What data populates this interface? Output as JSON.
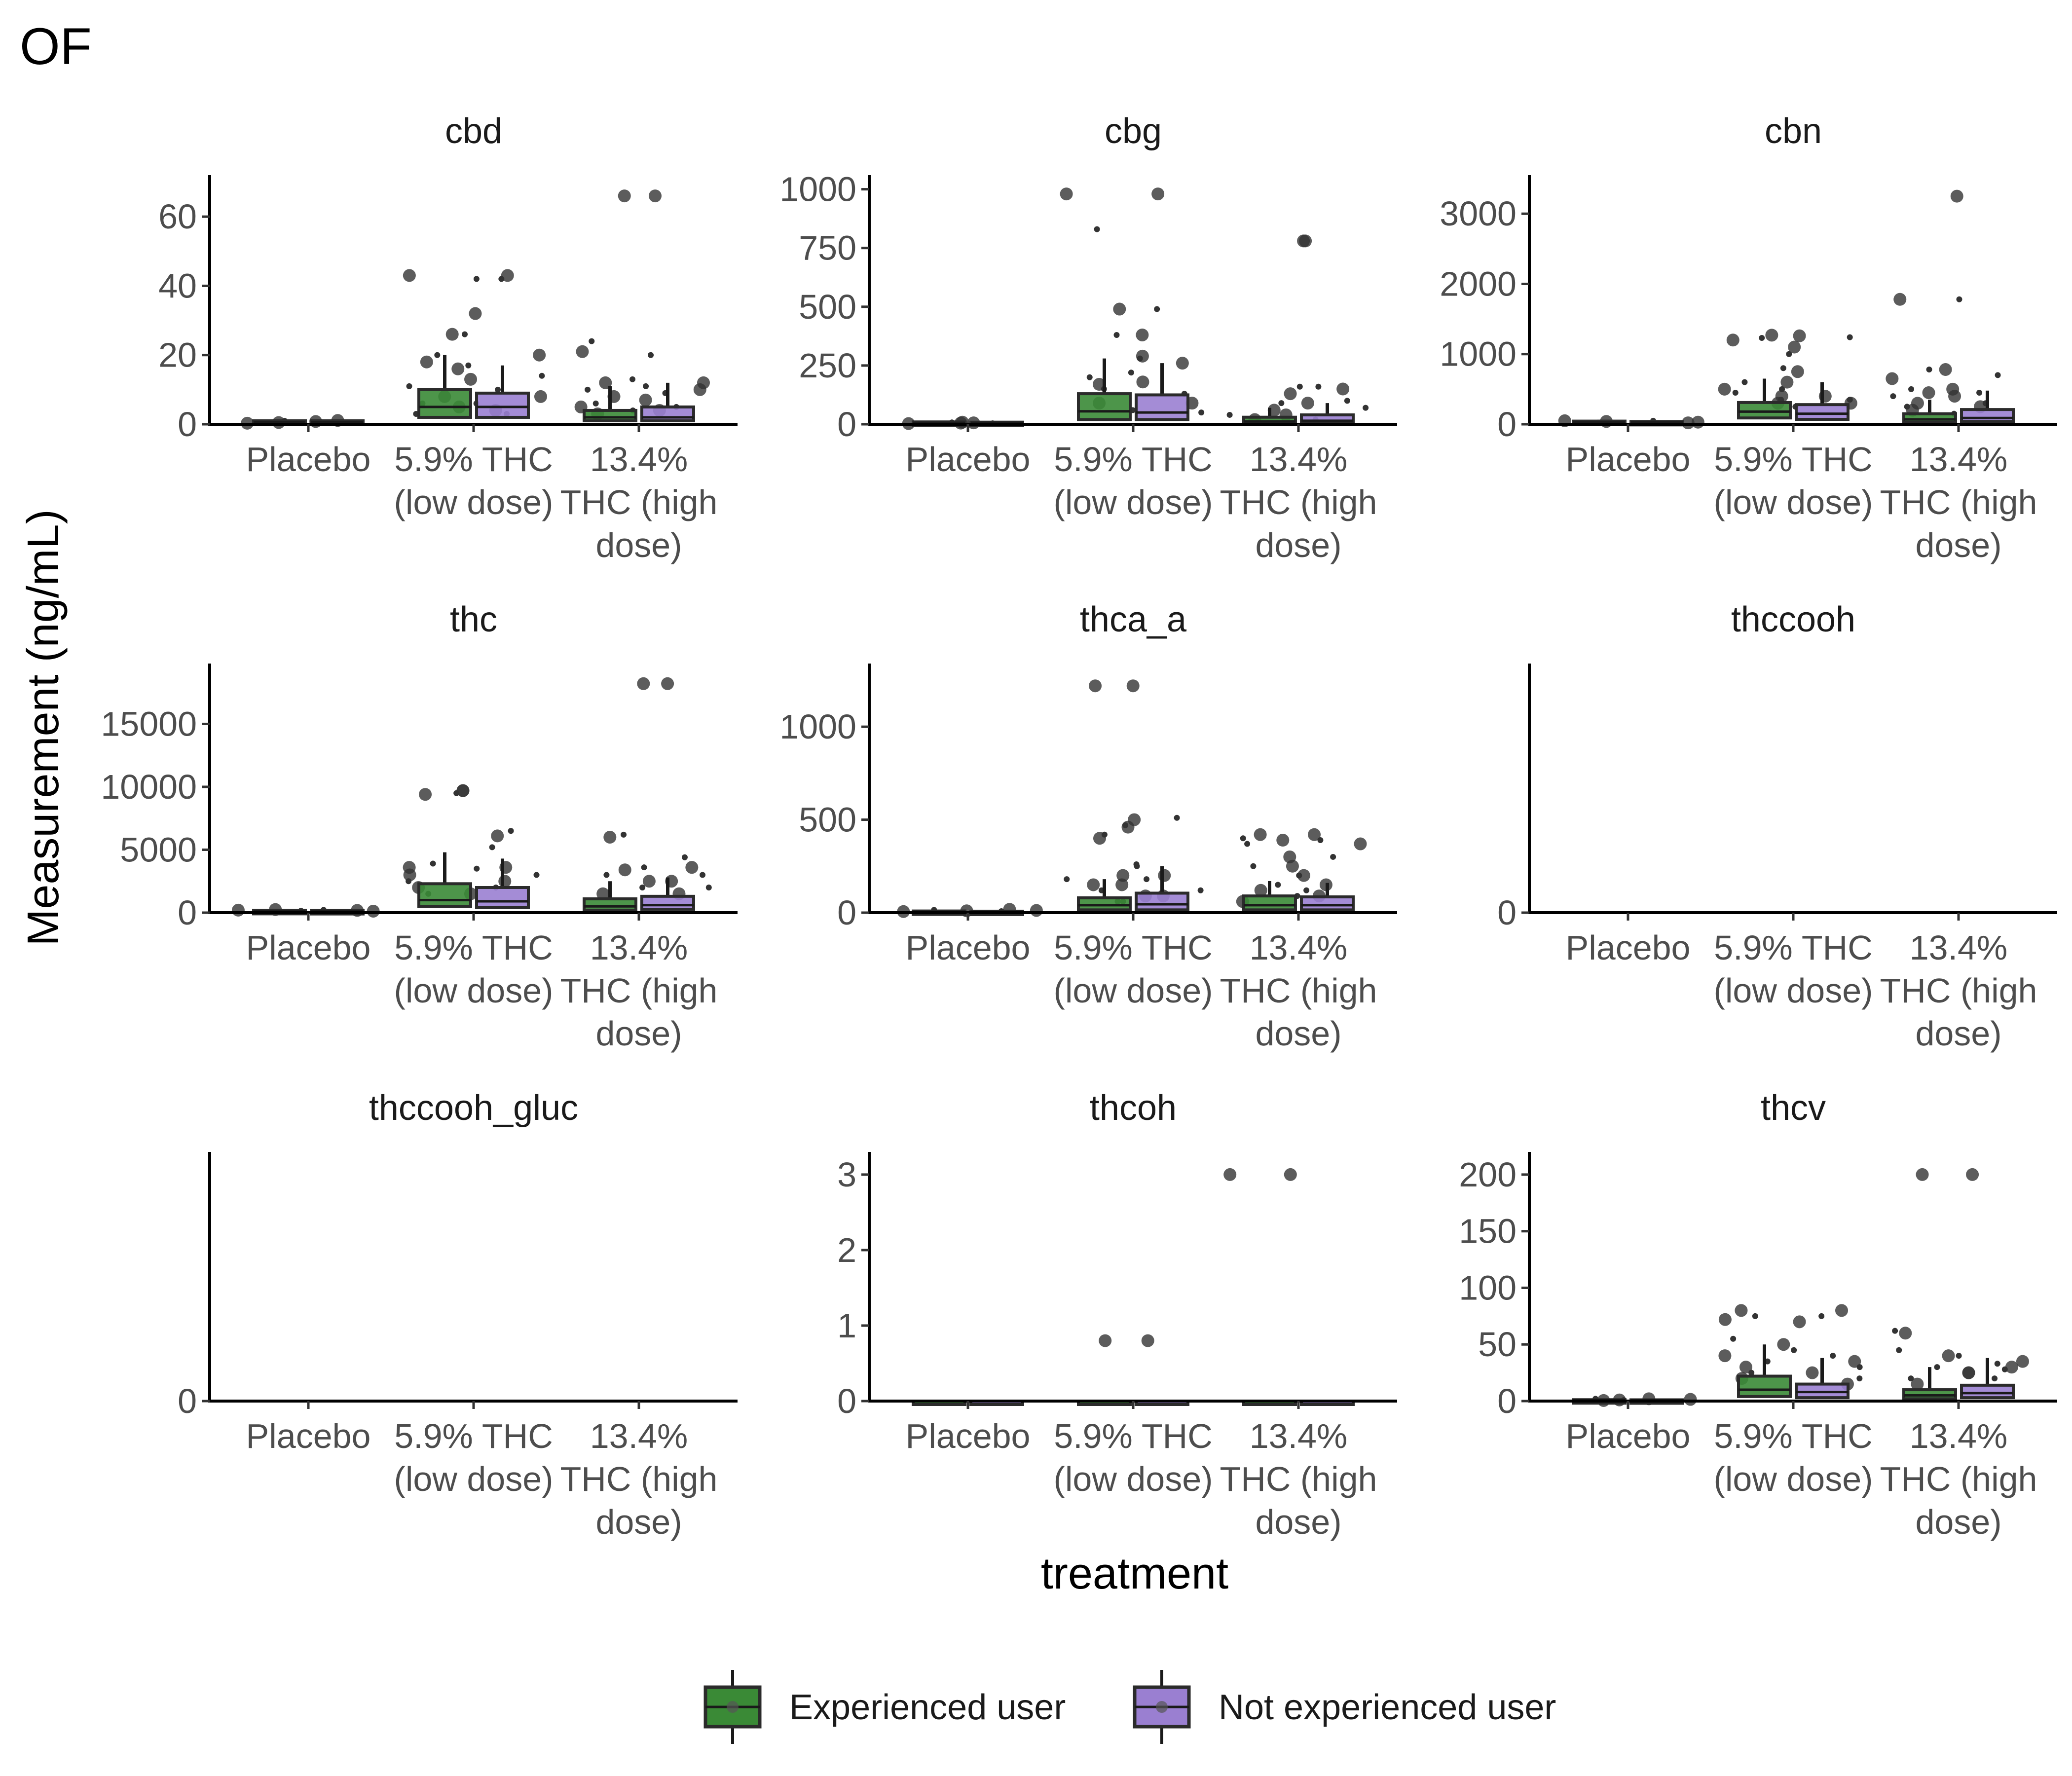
{
  "title": "OF",
  "chart_data": {
    "type": "boxplot",
    "title": "OF",
    "xlabel": "treatment",
    "ylabel": "Measurement (ng/mL)",
    "categories": [
      "Placebo",
      "5.9% THC (low dose)",
      "13.4% THC (high dose)"
    ],
    "category_label_lines": [
      [
        "Placebo"
      ],
      [
        "5.9% THC",
        "(low dose)"
      ],
      [
        "13.4%",
        "THC (high",
        "dose)"
      ]
    ],
    "legend": {
      "position": "bottom",
      "entries": [
        {
          "name": "Experienced user",
          "color": "#3a8a36"
        },
        {
          "name": "Not experienced user",
          "color": "#9a7fd1"
        }
      ]
    },
    "grid": false,
    "panels": [
      {
        "name": "cbd",
        "ylim": [
          0,
          72
        ],
        "yticks": [
          0,
          20,
          40,
          60
        ],
        "groups": [
          [
            [
              0,
              0.3,
              0.6,
              1,
              1.2
            ],
            [
              0,
              0.3,
              0.6,
              1,
              1.1
            ]
          ],
          [
            [
              0.5,
              2,
              5,
              10,
              20
            ],
            [
              0.5,
              2,
              5,
              9,
              17
            ]
          ],
          [
            [
              0.3,
              1,
              2,
              4,
              11
            ],
            [
              0.3,
              1,
              2,
              5,
              12
            ]
          ]
        ],
        "points": [
          [
            [
              0.5,
              1,
              0.3
            ],
            [
              0.8,
              0.6,
              1.1
            ]
          ],
          [
            [
              43,
              42,
              26,
              20,
              18,
              17,
              16,
              11,
              8,
              6,
              5,
              3
            ],
            [
              43,
              42,
              32,
              26,
              20,
              14,
              13,
              10,
              8,
              6,
              4,
              3
            ]
          ],
          [
            [
              66,
              24,
              21,
              20,
              12,
              10,
              8,
              6,
              5,
              4,
              3
            ],
            [
              66,
              13,
              12,
              11,
              10,
              9,
              7,
              5,
              4
            ]
          ]
        ]
      },
      {
        "name": "cbg",
        "ylim": [
          0,
          1060
        ],
        "yticks": [
          0,
          250,
          500,
          750,
          1000
        ],
        "groups": [
          [
            [
              0,
              3,
              6,
              10,
              14
            ],
            [
              0,
              3,
              6,
              9,
              13
            ]
          ],
          [
            [
              2,
              20,
              55,
              130,
              280
            ],
            [
              2,
              20,
              50,
              125,
              260
            ]
          ],
          [
            [
              1,
              5,
              12,
              30,
              70
            ],
            [
              1,
              5,
              15,
              40,
              90
            ]
          ]
        ],
        "points": [
          [
            [
              5,
              8,
              3
            ],
            [
              6,
              4,
              9
            ]
          ],
          [
            [
              980,
              830,
              490,
              380,
              290,
              200,
              170,
              150,
              90,
              60
            ],
            [
              980,
              490,
              380,
              280,
              260,
              220,
              180,
              130,
              90,
              50
            ]
          ],
          [
            [
              780,
              160,
              130,
              90,
              60,
              40,
              20,
              10
            ],
            [
              780,
              160,
              150,
              100,
              90,
              70,
              40,
              20
            ]
          ]
        ]
      },
      {
        "name": "cbn",
        "ylim": [
          0,
          3550
        ],
        "yticks": [
          0,
          1000,
          2000,
          3000
        ],
        "groups": [
          [
            [
              0,
              10,
              25,
              45,
              65
            ],
            [
              0,
              10,
              25,
              40,
              60
            ]
          ],
          [
            [
              20,
              90,
              180,
              310,
              650
            ],
            [
              15,
              70,
              150,
              280,
              600
            ]
          ],
          [
            [
              5,
              30,
              70,
              150,
              350
            ],
            [
              5,
              40,
              90,
              210,
              480
            ]
          ]
        ],
        "points": [
          [
            [
              40,
              20,
              50
            ],
            [
              30,
              50,
              20
            ]
          ],
          [
            [
              1270,
              1230,
              1200,
              1000,
              750,
              600,
              500,
              450,
              400,
              350,
              300,
              250
            ],
            [
              1260,
              1240,
              1100,
              800,
              600,
              500,
              400,
              350,
              300
            ]
          ],
          [
            [
              1780,
              780,
              650,
              500,
              450,
              400,
              300,
              250,
              200,
              150
            ],
            [
              3250,
              1780,
              780,
              700,
              500,
              450,
              400,
              300,
              250
            ]
          ]
        ]
      },
      {
        "name": "thc",
        "ylim": [
          0,
          19800
        ],
        "yticks": [
          0,
          5000,
          10000,
          15000
        ],
        "groups": [
          [
            [
              0,
              50,
              100,
              180,
              280
            ],
            [
              0,
              50,
              100,
              170,
              260
            ]
          ],
          [
            [
              100,
              500,
              1000,
              2300,
              4800
            ],
            [
              100,
              400,
              900,
              2000,
              4300
            ]
          ],
          [
            [
              50,
              200,
              500,
              1100,
              2500
            ],
            [
              50,
              250,
              600,
              1300,
              2800
            ]
          ]
        ],
        "points": [
          [
            [
              200,
              150,
              250
            ],
            [
              180,
              220,
              120
            ]
          ],
          [
            [
              9700,
              9500,
              9400,
              3900,
              3600,
              3500,
              3000,
              2500,
              2000,
              1500
            ],
            [
              9700,
              6500,
              6100,
              5200,
              3600,
              3000,
              2500,
              2000,
              1500
            ]
          ],
          [
            [
              18200,
              6200,
              6000,
              3600,
              3400,
              3000,
              2500,
              2000,
              1500
            ],
            [
              18200,
              4400,
              3600,
              3000,
              2500,
              2000,
              1500
            ]
          ]
        ]
      },
      {
        "name": "thca_a",
        "ylim": [
          0,
          1340
        ],
        "yticks": [
          0,
          500,
          1000
        ],
        "groups": [
          [
            [
              0,
              2,
              5,
              9,
              14
            ],
            [
              0,
              2,
              5,
              8,
              13
            ]
          ],
          [
            [
              2,
              15,
              40,
              80,
              180
            ],
            [
              2,
              15,
              45,
              105,
              250
            ]
          ],
          [
            [
              2,
              15,
              40,
              90,
              170
            ],
            [
              2,
              15,
              40,
              85,
              160
            ]
          ]
        ],
        "points": [
          [
            [
              10,
              15,
              6
            ],
            [
              12,
              8,
              18
            ]
          ],
          [
            [
              1220,
              470,
              460,
              420,
              400,
              260,
              200,
              180,
              150,
              120,
              90,
              60
            ],
            [
              1220,
              510,
              500,
              250,
              200,
              180,
              150,
              120,
              90,
              60
            ]
          ],
          [
            [
              420,
              400,
              390,
              370,
              300,
              250,
              200,
              150,
              120,
              90,
              60
            ],
            [
              420,
              390,
              370,
              300,
              250,
              200,
              150,
              120,
              90
            ]
          ]
        ]
      },
      {
        "name": "thccooh",
        "ylim": [
          0,
          1
        ],
        "yticks": [
          0
        ],
        "groups": [],
        "points": []
      },
      {
        "name": "thccooh_gluc",
        "ylim": [
          0,
          1
        ],
        "yticks": [
          0
        ],
        "groups": [],
        "points": []
      },
      {
        "name": "thcoh",
        "ylim": [
          0,
          3.3
        ],
        "yticks": [
          0,
          1,
          2,
          3
        ],
        "groups": [
          [
            [
              0,
              0,
              0,
              0,
              0
            ],
            [
              0,
              0,
              0,
              0,
              0
            ]
          ],
          [
            [
              0,
              0,
              0,
              0,
              0
            ],
            [
              0,
              0,
              0,
              0,
              0
            ]
          ],
          [
            [
              0,
              0,
              0,
              0,
              0
            ],
            [
              0,
              0,
              0,
              0,
              0
            ]
          ]
        ],
        "points": [
          [
            [],
            []
          ],
          [
            [
              0.8
            ],
            [
              0.8
            ]
          ],
          [
            [
              3
            ],
            [
              3
            ]
          ]
        ]
      },
      {
        "name": "thcv",
        "ylim": [
          0,
          220
        ],
        "yticks": [
          0,
          50,
          100,
          150,
          200
        ],
        "groups": [
          [
            [
              0,
              0.3,
              0.6,
              1.2,
              2
            ],
            [
              0,
              0.3,
              0.6,
              1.1,
              1.8
            ]
          ],
          [
            [
              0.5,
              4,
              10,
              22,
              50
            ],
            [
              0.5,
              3,
              8,
              15,
              38
            ]
          ],
          [
            [
              0.3,
              2,
              5,
              10,
              30
            ],
            [
              0.3,
              3,
              7,
              14,
              38
            ]
          ]
        ],
        "points": [
          [
            [
              1,
              2,
              0.5
            ],
            [
              1.5,
              0.8,
              2
            ]
          ],
          [
            [
              80,
              75,
              72,
              55,
              50,
              45,
              40,
              35,
              30,
              25,
              20
            ],
            [
              80,
              75,
              70,
              40,
              35,
              30,
              25,
              20,
              15
            ]
          ],
          [
            [
              200,
              62,
              60,
              45,
              40,
              30,
              25,
              20,
              15
            ],
            [
              200,
              40,
              35,
              33,
              30,
              28,
              25,
              20
            ]
          ]
        ]
      }
    ]
  }
}
